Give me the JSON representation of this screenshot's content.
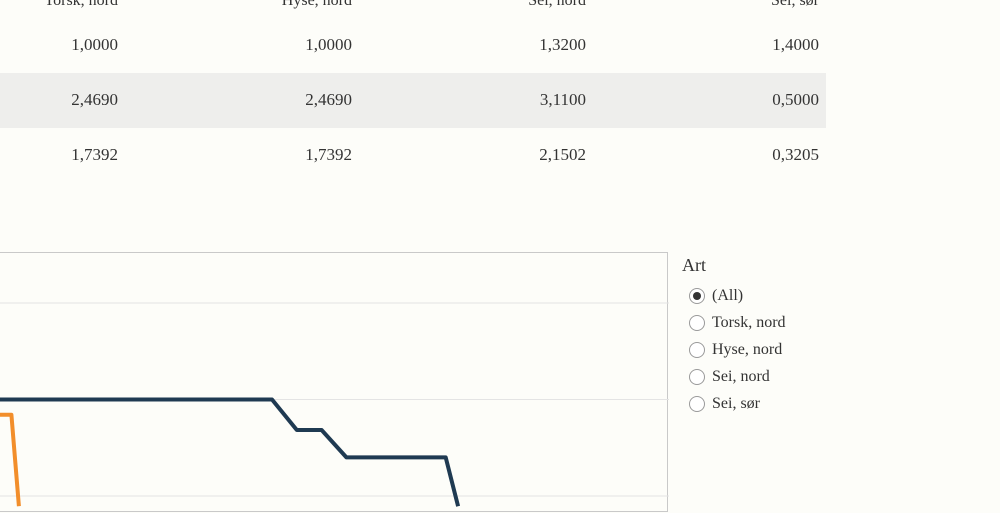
{
  "table": {
    "headers": [
      "Torsk, nord",
      "Hyse, nord",
      "Sei, nord",
      "Sei, sør"
    ],
    "rows": [
      [
        "1,0000",
        "1,0000",
        "1,3200",
        "1,4000"
      ],
      [
        "2,4690",
        "2,4690",
        "3,1100",
        "0,5000"
      ],
      [
        "1,7392",
        "1,7392",
        "2,1502",
        "0,3205"
      ]
    ]
  },
  "legend": {
    "title": "Art",
    "options": [
      "(All)",
      "Torsk, nord",
      "Hyse, nord",
      "Sei, nord",
      "Sei, sør"
    ],
    "selected": 0
  },
  "chart_data": {
    "type": "line",
    "grid": true,
    "series": [
      {
        "color": "#1f3a52",
        "x": [
          0,
          22,
          24,
          26,
          28,
          33,
          36,
          37
        ],
        "y": [
          1.45,
          1.45,
          1.15,
          1.15,
          0.88,
          0.88,
          0.88,
          0.4
        ]
      },
      {
        "color": "#f28e2b",
        "x": [
          0,
          1,
          1.6
        ],
        "y": [
          1.3,
          1.3,
          0.4
        ]
      }
    ],
    "xlim": [
      0,
      54
    ],
    "ylim": [
      0.5,
      2.4
    ]
  },
  "colors": {
    "navy": "#1f3a52",
    "orange": "#f28e2b",
    "grid": "#e4e4e4"
  }
}
